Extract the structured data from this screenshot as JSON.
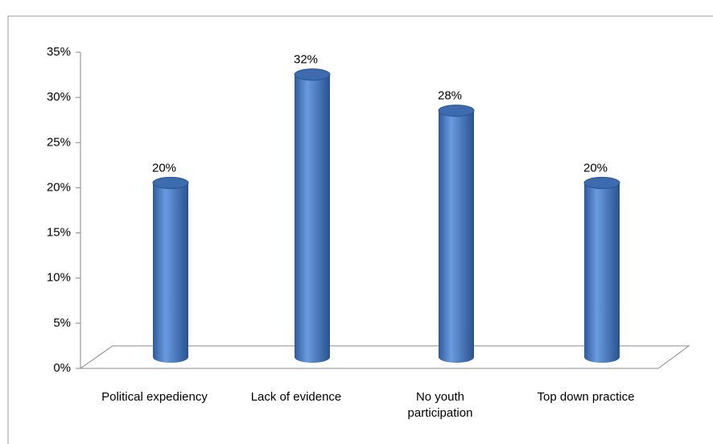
{
  "chart_data": {
    "type": "bar",
    "categories": [
      "Political expediency",
      "Lack of evidence",
      "No youth participation",
      "Top down practice"
    ],
    "values": [
      20,
      32,
      28,
      20
    ],
    "value_labels": [
      "20%",
      "32%",
      "28%",
      "20%"
    ],
    "color": "#4a7bc4",
    "ylim": [
      0,
      35
    ],
    "yticks": [
      {
        "value": 0,
        "label": "0%"
      },
      {
        "value": 5,
        "label": "5%"
      },
      {
        "value": 10,
        "label": "10%"
      },
      {
        "value": 15,
        "label": "15%"
      },
      {
        "value": 20,
        "label": "20%"
      },
      {
        "value": 25,
        "label": "25%"
      },
      {
        "value": 30,
        "label": "30%"
      },
      {
        "value": 35,
        "label": "35%"
      }
    ]
  }
}
